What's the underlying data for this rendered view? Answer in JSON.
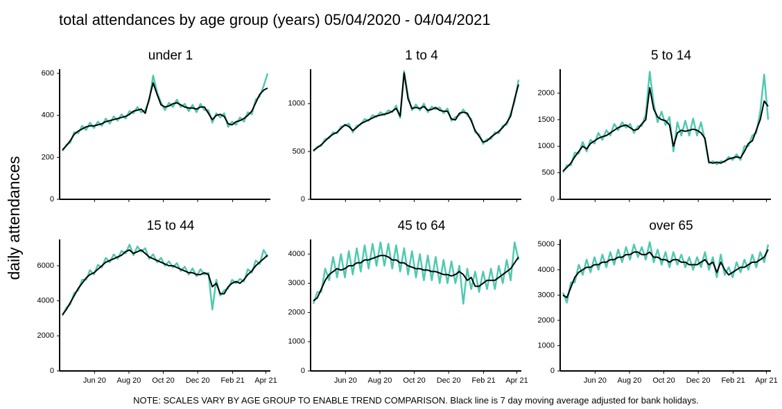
{
  "title": "total attendances by age group (years) 05/04/2020 - 04/04/2021",
  "ylabel": "daily attendances",
  "note": "NOTE: SCALES VARY BY AGE GROUP TO ENABLE TREND COMPARISON. Black line is 7 day moving average adjusted for bank holidays.",
  "x": [
    0,
    7,
    14,
    21,
    28,
    35,
    42,
    49,
    56,
    63,
    70,
    77,
    84,
    91,
    98,
    105,
    112,
    119,
    126,
    133,
    140,
    147,
    154,
    161,
    168,
    175,
    182,
    189,
    196,
    203,
    210,
    217,
    224,
    231,
    238,
    245,
    252,
    259,
    266,
    273,
    280,
    287,
    294,
    301,
    308,
    315,
    322,
    329,
    336,
    343,
    350,
    357,
    364
  ],
  "xlim": [
    0,
    364
  ],
  "xticks": [
    {
      "value": 57,
      "label": "Jun 20"
    },
    {
      "value": 118,
      "label": "Aug 20"
    },
    {
      "value": 179,
      "label": "Oct 20"
    },
    {
      "value": 240,
      "label": "Dec 20"
    },
    {
      "value": 302,
      "label": "Feb 21"
    },
    {
      "value": 361,
      "label": "Apr 21"
    }
  ],
  "chart_data": [
    {
      "type": "line",
      "title": "under 1",
      "ylim": [
        0,
        620
      ],
      "yticks": [
        0,
        200,
        400,
        600
      ],
      "series": [
        {
          "color": "#4fc9b0",
          "values": [
            230,
            260,
            270,
            320,
            315,
            350,
            330,
            365,
            340,
            370,
            350,
            385,
            360,
            395,
            375,
            405,
            385,
            420,
            410,
            440,
            415,
            425,
            470,
            590,
            510,
            460,
            425,
            460,
            440,
            475,
            440,
            455,
            420,
            450,
            415,
            455,
            425,
            425,
            365,
            410,
            390,
            410,
            345,
            370,
            355,
            390,
            370,
            415,
            405,
            475,
            490,
            540,
            600
          ]
        },
        {
          "color": "#000000",
          "values": [
            235,
            255,
            280,
            310,
            325,
            335,
            345,
            350,
            350,
            355,
            360,
            370,
            375,
            380,
            385,
            390,
            395,
            405,
            420,
            425,
            430,
            410,
            480,
            555,
            500,
            450,
            440,
            445,
            455,
            460,
            450,
            440,
            435,
            435,
            430,
            440,
            440,
            410,
            380,
            400,
            405,
            395,
            360,
            355,
            370,
            375,
            385,
            400,
            420,
            460,
            500,
            520,
            530
          ]
        }
      ]
    },
    {
      "type": "line",
      "title": "1 to 4",
      "ylim": [
        0,
        1360
      ],
      "yticks": [
        0,
        500,
        1000
      ],
      "series": [
        {
          "color": "#4fc9b0",
          "values": [
            500,
            550,
            560,
            630,
            640,
            700,
            690,
            760,
            770,
            790,
            700,
            770,
            780,
            840,
            820,
            880,
            860,
            910,
            880,
            930,
            910,
            980,
            850,
            1340,
            1080,
            930,
            990,
            930,
            1000,
            910,
            970,
            940,
            960,
            900,
            950,
            820,
            860,
            880,
            940,
            880,
            840,
            700,
            680,
            580,
            630,
            630,
            700,
            690,
            770,
            780,
            900,
            1020,
            1250
          ]
        },
        {
          "color": "#000000",
          "values": [
            510,
            540,
            570,
            610,
            650,
            680,
            700,
            740,
            780,
            760,
            720,
            750,
            790,
            810,
            830,
            850,
            870,
            880,
            890,
            900,
            920,
            950,
            870,
            1320,
            1050,
            950,
            960,
            950,
            970,
            930,
            940,
            960,
            930,
            920,
            920,
            840,
            830,
            900,
            910,
            900,
            820,
            720,
            660,
            600,
            610,
            650,
            680,
            710,
            750,
            800,
            870,
            1050,
            1200
          ]
        }
      ]
    },
    {
      "type": "line",
      "title": "5 to 14",
      "ylim": [
        0,
        2450
      ],
      "yticks": [
        0,
        500,
        1000,
        1500,
        2000
      ],
      "series": [
        {
          "color": "#4fc9b0",
          "values": [
            500,
            640,
            640,
            880,
            860,
            1080,
            900,
            1120,
            1050,
            1250,
            1120,
            1300,
            1200,
            1420,
            1300,
            1450,
            1350,
            1420,
            1250,
            1380,
            1380,
            1600,
            2400,
            1800,
            1450,
            1650,
            1400,
            1550,
            900,
            1450,
            1200,
            1480,
            1200,
            1520,
            1200,
            1450,
            1100,
            680,
            720,
            660,
            720,
            700,
            800,
            740,
            850,
            740,
            1000,
            1000,
            1200,
            1250,
            1650,
            2350,
            1500
          ]
        },
        {
          "color": "#000000",
          "values": [
            530,
            600,
            680,
            800,
            900,
            1000,
            950,
            1050,
            1100,
            1150,
            1180,
            1200,
            1250,
            1300,
            1350,
            1380,
            1400,
            1350,
            1300,
            1320,
            1420,
            1500,
            2100,
            1700,
            1550,
            1500,
            1480,
            1400,
            1000,
            1250,
            1300,
            1280,
            1300,
            1320,
            1300,
            1250,
            1150,
            700,
            680,
            700,
            680,
            720,
            760,
            780,
            800,
            780,
            900,
            1050,
            1100,
            1300,
            1500,
            1850,
            1750
          ]
        }
      ]
    },
    {
      "type": "line",
      "title": "15 to 44",
      "ylim": [
        0,
        7500
      ],
      "yticks": [
        0,
        2000,
        4000,
        6000
      ],
      "series": [
        {
          "color": "#4fc9b0",
          "values": [
            3150,
            3600,
            3800,
            4450,
            4600,
            5200,
            5200,
            5750,
            5500,
            6050,
            5900,
            6450,
            6200,
            6650,
            6400,
            6850,
            6700,
            7200,
            6600,
            7100,
            6800,
            7000,
            6400,
            6650,
            6200,
            6450,
            6000,
            6250,
            5900,
            6150,
            5700,
            5950,
            5500,
            5850,
            5400,
            5800,
            5500,
            5600,
            3500,
            5200,
            4300,
            4600,
            4700,
            5200,
            5000,
            5250,
            5100,
            5800,
            5600,
            6300,
            6100,
            6900,
            6500
          ]
        },
        {
          "color": "#000000",
          "values": [
            3200,
            3500,
            3900,
            4300,
            4700,
            5000,
            5300,
            5500,
            5600,
            5800,
            6000,
            6200,
            6300,
            6400,
            6500,
            6600,
            6800,
            6900,
            6700,
            6800,
            6900,
            6700,
            6500,
            6400,
            6300,
            6200,
            6100,
            6000,
            6000,
            5900,
            5800,
            5700,
            5600,
            5600,
            5500,
            5500,
            5600,
            5500,
            4800,
            5000,
            4400,
            4400,
            4800,
            5000,
            5100,
            5000,
            5200,
            5500,
            5700,
            6000,
            6200,
            6400,
            6600
          ]
        }
      ]
    },
    {
      "type": "line",
      "title": "45 to 64",
      "ylim": [
        0,
        4500
      ],
      "yticks": [
        0,
        1000,
        2000,
        3000,
        4000
      ],
      "series": [
        {
          "color": "#4fc9b0",
          "values": [
            2300,
            2700,
            2700,
            3500,
            3100,
            3900,
            3200,
            4000,
            3200,
            4100,
            3300,
            4200,
            3400,
            4300,
            3500,
            4350,
            3600,
            4400,
            3600,
            4350,
            3500,
            4300,
            3400,
            4200,
            3300,
            4100,
            3200,
            4000,
            3100,
            3950,
            3100,
            3900,
            3000,
            3800,
            3000,
            3750,
            3000,
            3600,
            2300,
            3500,
            2800,
            3400,
            2700,
            3400,
            2800,
            3500,
            2800,
            3600,
            3000,
            3800,
            3100,
            4400,
            3800
          ]
        },
        {
          "color": "#000000",
          "values": [
            2400,
            2500,
            2800,
            3100,
            3300,
            3400,
            3500,
            3450,
            3500,
            3600,
            3600,
            3700,
            3700,
            3800,
            3800,
            3850,
            3900,
            3950,
            3950,
            3900,
            3800,
            3800,
            3700,
            3700,
            3600,
            3550,
            3500,
            3500,
            3450,
            3450,
            3400,
            3400,
            3350,
            3300,
            3300,
            3250,
            3300,
            3400,
            3300,
            3100,
            3200,
            2900,
            2900,
            3000,
            3100,
            3100,
            3100,
            3200,
            3300,
            3400,
            3500,
            3700,
            3900
          ]
        }
      ]
    },
    {
      "type": "line",
      "title": "over 65",
      "ylim": [
        0,
        5200
      ],
      "yticks": [
        0,
        1000,
        2000,
        3000,
        4000,
        5000
      ],
      "series": [
        {
          "color": "#4fc9b0",
          "values": [
            3100,
            2700,
            3500,
            3500,
            4200,
            3800,
            4400,
            3900,
            4500,
            4000,
            4600,
            4100,
            4700,
            4200,
            4800,
            4300,
            4900,
            4400,
            5000,
            4500,
            4900,
            4400,
            5100,
            4300,
            4800,
            4200,
            4700,
            4100,
            4700,
            4200,
            4600,
            4100,
            4500,
            4000,
            4500,
            4100,
            4700,
            4000,
            4500,
            3700,
            4600,
            3800,
            4100,
            3700,
            4300,
            3900,
            4400,
            4000,
            4600,
            4100,
            4700,
            4300,
            5000
          ]
        },
        {
          "color": "#000000",
          "values": [
            3000,
            2900,
            3300,
            3700,
            3900,
            4000,
            4100,
            4100,
            4200,
            4200,
            4300,
            4300,
            4400,
            4400,
            4500,
            4500,
            4600,
            4600,
            4700,
            4700,
            4600,
            4600,
            4700,
            4500,
            4500,
            4400,
            4400,
            4300,
            4400,
            4400,
            4300,
            4300,
            4200,
            4200,
            4200,
            4300,
            4400,
            4200,
            4300,
            3900,
            4300,
            4000,
            3800,
            3900,
            4000,
            4100,
            4100,
            4200,
            4300,
            4300,
            4400,
            4500,
            4800
          ]
        }
      ]
    }
  ]
}
